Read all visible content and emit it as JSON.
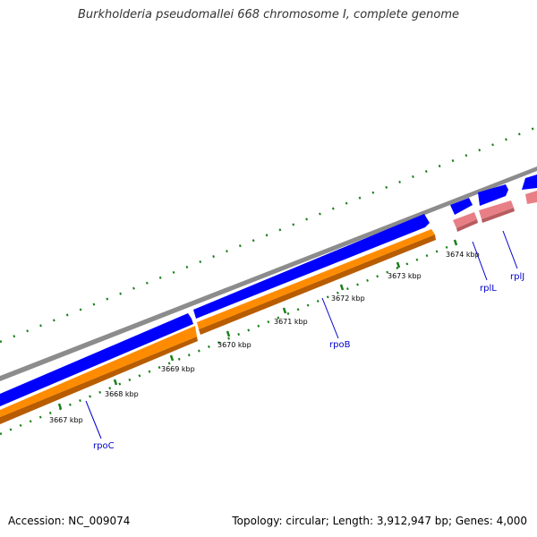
{
  "title": "Burkholderia pseudomallei 668 chromosome I, complete genome",
  "footer": {
    "accession": "Accession: NC_009074",
    "summary": "Topology: circular; Length: 3,912,947 bp; Genes: 4,000"
  },
  "scale": {
    "labels": [
      "3667 kbp",
      "3668 kbp",
      "3669 kbp",
      "3670 kbp",
      "3671 kbp",
      "3672 kbp",
      "3673 kbp",
      "3674 kbp"
    ]
  },
  "genes": [
    {
      "name": "rpoC"
    },
    {
      "name": "rpoB"
    },
    {
      "name": "rplL"
    },
    {
      "name": "rplJ"
    }
  ],
  "colors": {
    "backbone": "#8c8c8c",
    "cds_forward": "#0000ff",
    "gene_forward": "#ff8c00",
    "gene_shadow": "#b85c00",
    "rrna_like": "#e87f87",
    "gc_skew_ticks": "#1a7f1a",
    "scale_ticks": "#1a7f1a",
    "gene_label": "#0000cc"
  }
}
